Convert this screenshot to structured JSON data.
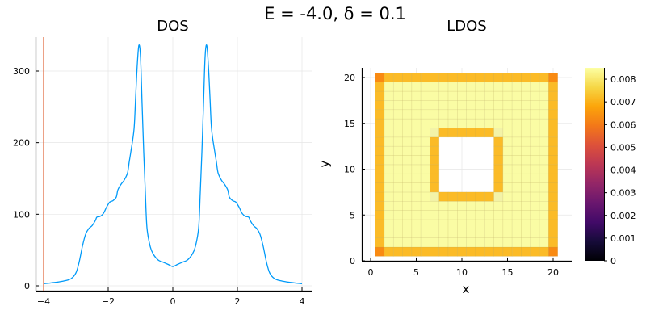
{
  "suptitle": "E = -4.0, δ = 0.1",
  "chart_data": [
    {
      "type": "line",
      "title": "DOS",
      "xlabel": "",
      "ylabel": "",
      "xlim": [
        -4.2,
        4.2
      ],
      "ylim": [
        -10,
        345
      ],
      "xticks": [
        "−4",
        "−2",
        "0",
        "2",
        "4"
      ],
      "yticks": [
        "0",
        "100",
        "200",
        "300"
      ],
      "grid": true,
      "legend": "none",
      "series": [
        {
          "name": "DOS",
          "color": "#009af9",
          "x": [
            -4.0,
            -3.6,
            -3.35,
            -3.15,
            -3.0,
            -2.9,
            -2.8,
            -2.7,
            -2.6,
            -2.5,
            -2.4,
            -2.35,
            -2.25,
            -2.15,
            -2.05,
            -1.95,
            -1.85,
            -1.75,
            -1.7,
            -1.6,
            -1.5,
            -1.4,
            -1.35,
            -1.3,
            -1.2,
            -1.15,
            -1.1,
            -1.05,
            -1.0,
            -0.95,
            -0.9,
            -0.85,
            -0.8,
            -0.7,
            -0.6,
            -0.45,
            -0.3,
            -0.15,
            0.0,
            0.15,
            0.3,
            0.45,
            0.6,
            0.7,
            0.8,
            0.85,
            0.9,
            0.95,
            1.0,
            1.05,
            1.1,
            1.15,
            1.2,
            1.3,
            1.35,
            1.4,
            1.5,
            1.6,
            1.7,
            1.75,
            1.85,
            1.95,
            2.05,
            2.15,
            2.25,
            2.35,
            2.4,
            2.5,
            2.6,
            2.7,
            2.8,
            2.9,
            3.0,
            3.15,
            3.35,
            3.6,
            4.0
          ],
          "y": [
            3,
            5,
            7,
            10,
            18,
            33,
            55,
            72,
            80,
            84,
            91,
            96,
            97,
            101,
            110,
            117,
            119,
            124,
            134,
            142,
            148,
            158,
            173,
            187,
            219,
            264,
            309,
            336,
            320,
            253,
            186,
            130,
            81,
            55,
            44,
            36,
            33,
            30,
            27,
            30,
            33,
            36,
            44,
            55,
            81,
            130,
            186,
            253,
            320,
            336,
            309,
            264,
            219,
            187,
            173,
            158,
            148,
            142,
            134,
            124,
            119,
            117,
            110,
            101,
            97,
            96,
            91,
            84,
            80,
            72,
            55,
            33,
            18,
            10,
            7,
            5,
            3
          ]
        },
        {
          "name": "E marker",
          "color": "#e26f46",
          "type": "vline",
          "x": -4.0
        }
      ]
    },
    {
      "type": "heatmap",
      "title": "LDOS",
      "xlabel": "x",
      "ylabel": "y",
      "xlim": [
        -1,
        22
      ],
      "ylim": [
        0,
        21
      ],
      "xticks": [
        "0",
        "5",
        "10",
        "15",
        "20"
      ],
      "yticks": [
        "0",
        "5",
        "10",
        "15",
        "20"
      ],
      "grid_size": [
        20,
        20
      ],
      "colormap": "inferno",
      "colorbar": {
        "range": [
          0,
          0.0085
        ],
        "ticks": [
          "0",
          "0.001",
          "0.002",
          "0.003",
          "0.004",
          "0.005",
          "0.006",
          "0.007",
          "0.008"
        ]
      },
      "regions": {
        "corner_value": 0.0069,
        "edge_value": 0.0075,
        "bulk_value": 0.0084,
        "hole_x": [
          8,
          13
        ],
        "hole_y": [
          8,
          13
        ],
        "hole_value": null,
        "description": "20×20 lattice; outer edge sites ≈0.0075, four outer corners ≈0.0069, interior ≈0.0084, square hole (x,y ∈ 8..13) empty with edge sites ≈0.0075 around it"
      },
      "colors": {
        "corner": "#f98a12",
        "edge": "#fbbb27",
        "bulk": "#fafca4",
        "hole_corner": "#f3f3a8"
      }
    }
  ]
}
